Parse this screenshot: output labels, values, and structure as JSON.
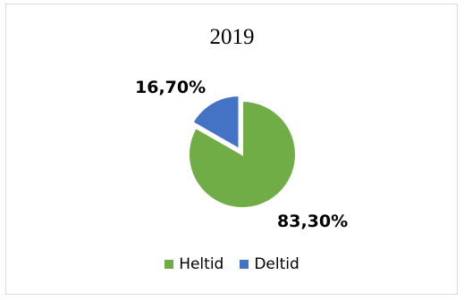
{
  "chart_data": {
    "type": "pie",
    "title": "2019",
    "slices": [
      {
        "name": "Heltid",
        "value": 83.3,
        "label": "83,30%",
        "color": "#70ad47"
      },
      {
        "name": "Deltid",
        "value": 16.7,
        "label": "16,70%",
        "color": "#4472c4"
      }
    ],
    "legend_position": "bottom",
    "explode": "Deltid"
  }
}
